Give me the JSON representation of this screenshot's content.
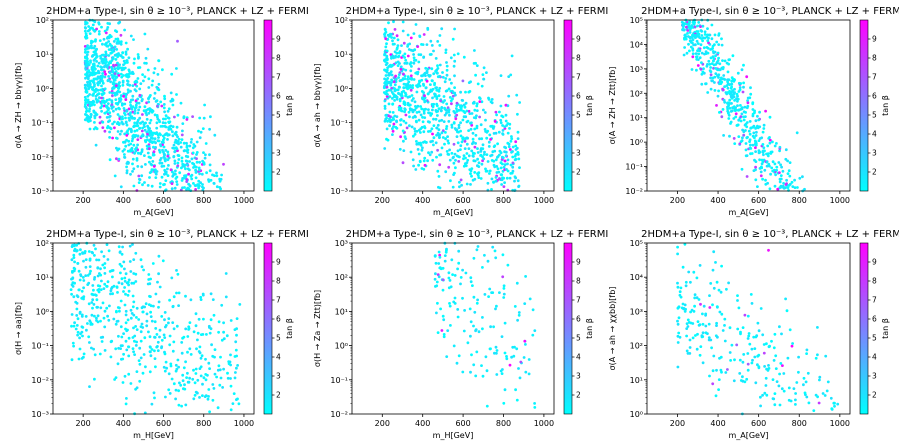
{
  "chart_data": [
    {
      "type": "scatter",
      "title": "2HDM+a Type-I, sin θ ≥ 10⁻³, PLANCK + LZ + FERMI",
      "xlabel": "m_A[GeV]",
      "ylabel": "σ(A → ZH → bbγγ)[fb]",
      "xlim": [
        50,
        1050
      ],
      "ylim": [
        0.001,
        100
      ],
      "yscale": "log",
      "xticks": [
        "200",
        "400",
        "600",
        "800",
        "1000"
      ],
      "yticks": [
        "10⁻³",
        "10⁻²",
        "10⁻¹",
        "10⁰",
        "10¹",
        "10²"
      ],
      "colorbar": {
        "label": "tan β",
        "range": [
          1,
          10
        ],
        "ticks": [
          "2",
          "3",
          "4",
          "5",
          "6",
          "7",
          "8",
          "9"
        ]
      },
      "pattern": {
        "n": 1600,
        "x": [
          210,
          900
        ],
        "ylogStart": 1.0,
        "ylogSlope": -0.0078,
        "ypeak": 230,
        "yspread": 1.0,
        "magentaFrac": 0.07,
        "spike": {
          "x": [
            230,
            300
          ],
          "y": [
            -1,
            1
          ]
        }
      }
    },
    {
      "type": "scatter",
      "title": "2HDM+a Type-I, sin θ ≥ 10⁻³, PLANCK + LZ + FERMI",
      "xlabel": "m_A[GeV]",
      "ylabel": "σ(A → ah → bbγγ)[fb]",
      "xlim": [
        50,
        1050
      ],
      "ylim": [
        0.001,
        100
      ],
      "yscale": "log",
      "xticks": [
        "200",
        "400",
        "600",
        "800",
        "1000"
      ],
      "yticks": [
        "10⁻³",
        "10⁻²",
        "10⁻¹",
        "10⁰",
        "10¹",
        "10²"
      ],
      "colorbar": {
        "label": "tan β",
        "range": [
          1,
          10
        ],
        "ticks": [
          "2",
          "3",
          "4",
          "5",
          "6",
          "7",
          "8",
          "9"
        ]
      },
      "pattern": {
        "n": 1100,
        "x": [
          210,
          880
        ],
        "ylogStart": 0.4,
        "ylogSlope": -0.0045,
        "ypeak": 230,
        "yspread": 1.0,
        "magentaFrac": 0.07
      }
    },
    {
      "type": "scatter",
      "title": "2HDM+a Type-I, sin θ ≥ 10⁻³, PLANCK + LZ + FERMI",
      "xlabel": "m_A[GeV]",
      "ylabel": "σ(A → ZH → Ztt)[fb]",
      "xlim": [
        50,
        1050
      ],
      "ylim": [
        0.01,
        100000
      ],
      "yscale": "log",
      "xticks": [
        "200",
        "400",
        "600",
        "800",
        "1000"
      ],
      "yticks": [
        "10⁻²",
        "10⁻¹",
        "10⁰",
        "10¹",
        "10²",
        "10³",
        "10⁴",
        "10⁵"
      ],
      "colorbar": {
        "label": "tan β",
        "range": [
          1,
          10
        ],
        "ticks": [
          "2",
          "3",
          "4",
          "5",
          "6",
          "7",
          "8",
          "9"
        ]
      },
      "pattern": {
        "n": 800,
        "x": [
          220,
          880
        ],
        "ylogStart": 4.3,
        "ylogSlope": -0.015,
        "ypeak": 300,
        "yspread": 0.8,
        "magentaFrac": 0.08
      }
    },
    {
      "type": "scatter",
      "title": "2HDM+a Type-I, sin θ ≥ 10⁻³, PLANCK + LZ + FERMI",
      "xlabel": "m_H[GeV]",
      "ylabel": "σ(H → aa)[fb]",
      "xlim": [
        50,
        1050
      ],
      "ylim": [
        0.001,
        100
      ],
      "yscale": "log",
      "xticks": [
        "200",
        "400",
        "600",
        "800",
        "1000"
      ],
      "yticks": [
        "10⁻³",
        "10⁻²",
        "10⁻¹",
        "10⁰",
        "10¹",
        "10²"
      ],
      "colorbar": {
        "label": "tan β",
        "range": [
          1,
          10
        ],
        "ticks": [
          "2",
          "3",
          "4",
          "5",
          "6",
          "7",
          "8",
          "9"
        ]
      },
      "pattern": {
        "n": 650,
        "x": [
          140,
          980
        ],
        "ylogStart": 1.2,
        "ylogSlope": -0.0042,
        "ypeak": 140,
        "yspread": 1.2,
        "magentaFrac": 0.0
      }
    },
    {
      "type": "scatter",
      "title": "2HDM+a Type-I, sin θ ≥ 10⁻³, PLANCK + LZ + FERMI",
      "xlabel": "m_H[GeV]",
      "ylabel": "σ(H → Za → Ztt)[fb]",
      "xlim": [
        50,
        1050
      ],
      "ylim": [
        0.01,
        1000
      ],
      "yscale": "log",
      "xticks": [
        "200",
        "400",
        "600",
        "800",
        "1000"
      ],
      "yticks": [
        "10⁻²",
        "10⁻¹",
        "10⁰",
        "10¹",
        "10²",
        "10³"
      ],
      "colorbar": {
        "label": "tan β",
        "range": [
          1,
          10
        ],
        "ticks": [
          "2",
          "3",
          "4",
          "5",
          "6",
          "7",
          "8",
          "9"
        ]
      },
      "pattern": {
        "n": 190,
        "x": [
          460,
          960
        ],
        "ylogStart": 1.6,
        "ylogSlope": -0.0045,
        "ypeak": 560,
        "yspread": 1.1,
        "magentaFrac": 0.03
      }
    },
    {
      "type": "scatter",
      "title": "2HDM+a Type-I, sin θ ≥ 10⁻³, PLANCK + LZ + FERMI",
      "xlabel": "m_A[GeV]",
      "ylabel": "σ(A → ah → χχbb)[fb]",
      "xlim": [
        50,
        1050
      ],
      "ylim": [
        1,
        100000
      ],
      "yscale": "log",
      "xticks": [
        "200",
        "400",
        "600",
        "800",
        "1000"
      ],
      "yticks": [
        "10⁰",
        "10¹",
        "10²",
        "10³",
        "10⁴",
        "10⁵"
      ],
      "colorbar": {
        "label": "tan β",
        "range": [
          1,
          10
        ],
        "ticks": [
          "2",
          "3",
          "4",
          "5",
          "6",
          "7",
          "8",
          "9"
        ]
      },
      "pattern": {
        "n": 300,
        "x": [
          200,
          1000
        ],
        "ylogStart": 3.4,
        "ylogSlope": -0.0045,
        "ypeak": 200,
        "yspread": 0.9,
        "magentaFrac": 0.03
      }
    }
  ]
}
